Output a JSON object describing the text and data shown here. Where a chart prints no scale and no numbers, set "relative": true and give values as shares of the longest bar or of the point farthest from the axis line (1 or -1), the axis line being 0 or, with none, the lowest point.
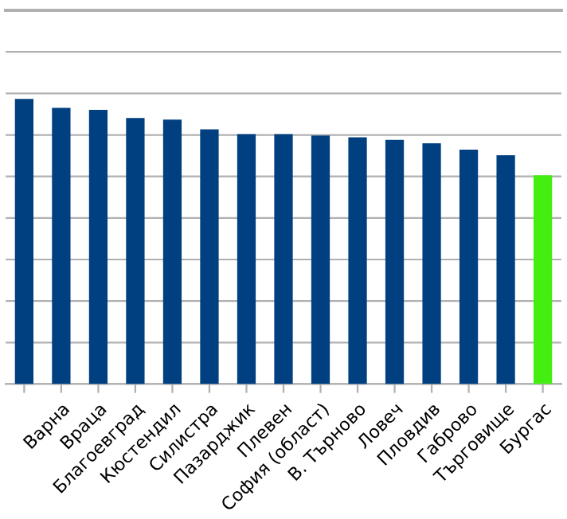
{
  "chart_data": {
    "type": "bar",
    "relative": true,
    "grid": "y",
    "legend": false,
    "categories": [
      null,
      "Варна",
      "Враца",
      "Благоевград",
      "Кюстендил",
      "Силистра",
      "Пазарджик",
      "Плевен",
      "София (област)",
      "В. Търново",
      "Ловеч",
      "Пловдив",
      "Габрово",
      "Търговище",
      "Бургас"
    ],
    "values": [
      1,
      0.968,
      0.961,
      0.933,
      0.927,
      0.893,
      0.876,
      0.876,
      0.871,
      0.865,
      0.856,
      0.844,
      0.822,
      0.802,
      0.732
    ],
    "colors": [
      "#004080",
      "#004080",
      "#004080",
      "#004080",
      "#004080",
      "#004080",
      "#004080",
      "#004080",
      "#004080",
      "#004080",
      "#004080",
      "#004080",
      "#004080",
      "#004080",
      "#44ee11"
    ]
  }
}
